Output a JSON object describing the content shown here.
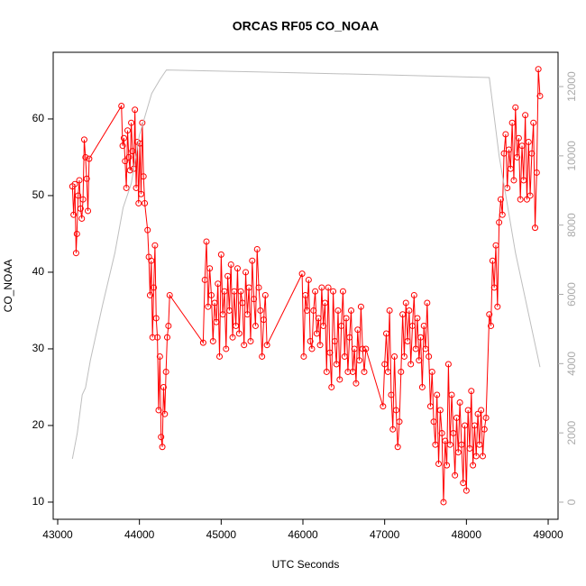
{
  "chart_data": {
    "type": "line",
    "title": "ORCAS RF05 CO_NOAA",
    "x_label": "UTC Seconds",
    "y_label": "CO_NOAA",
    "xlim": [
      42945,
      49121
    ],
    "xticks": [
      43000,
      44000,
      45000,
      46000,
      47000,
      48000,
      49000
    ],
    "ylim": [
      7.76,
      68.7
    ],
    "yticks": [
      10,
      20,
      30,
      40,
      50,
      60
    ],
    "y2lim": [
      -495,
      12990
    ],
    "y2ticks": [
      0,
      2000,
      4000,
      6000,
      8000,
      10000,
      12000
    ],
    "series": [
      {
        "color": "#ff0000",
        "marker": "circle",
        "x": [
          43180,
          43195,
          43210,
          43225,
          43235,
          43250,
          43265,
          43280,
          43295,
          43310,
          43325,
          43340,
          43355,
          43370,
          43385,
          43780,
          43795,
          43810,
          43825,
          43840,
          43855,
          43870,
          43885,
          43900,
          43915,
          43930,
          43945,
          43960,
          43975,
          43990,
          44005,
          44020,
          44035,
          44050,
          44065,
          44100,
          44115,
          44130,
          44145,
          44160,
          44175,
          44190,
          44205,
          44220,
          44235,
          44250,
          44265,
          44280,
          44295,
          44310,
          44325,
          44340,
          44355,
          44370,
          44780,
          44800,
          44820,
          44840,
          44860,
          44880,
          44900,
          44920,
          44940,
          44960,
          44980,
          45000,
          45020,
          45040,
          45060,
          45080,
          45100,
          45120,
          45140,
          45160,
          45180,
          45200,
          45220,
          45240,
          45260,
          45280,
          45300,
          45320,
          45340,
          45360,
          45380,
          45400,
          45420,
          45440,
          45460,
          45480,
          45500,
          45520,
          45540,
          45560,
          45990,
          46010,
          46030,
          46050,
          46070,
          46090,
          46110,
          46130,
          46150,
          46170,
          46190,
          46210,
          46230,
          46250,
          46270,
          46290,
          46310,
          46330,
          46350,
          46370,
          46390,
          46410,
          46430,
          46450,
          46470,
          46490,
          46510,
          46530,
          46550,
          46570,
          46590,
          46610,
          46630,
          46650,
          46670,
          46690,
          46710,
          46730,
          46750,
          46770,
          46980,
          47000,
          47020,
          47040,
          47060,
          47080,
          47100,
          47120,
          47140,
          47160,
          47180,
          47200,
          47220,
          47240,
          47260,
          47280,
          47300,
          47320,
          47340,
          47360,
          47380,
          47400,
          47420,
          47440,
          47460,
          47480,
          47500,
          47520,
          47540,
          47560,
          47580,
          47600,
          47620,
          47640,
          47660,
          47680,
          47700,
          47720,
          47740,
          47760,
          47780,
          47800,
          47820,
          47840,
          47860,
          47880,
          47900,
          47920,
          47940,
          47960,
          47980,
          48000,
          48020,
          48040,
          48060,
          48080,
          48100,
          48120,
          48140,
          48160,
          48180,
          48200,
          48220,
          48240,
          48280,
          48300,
          48320,
          48340,
          48360,
          48380,
          48400,
          48420,
          48440,
          48460,
          48480,
          48500,
          48520,
          48540,
          48560,
          48580,
          48600,
          48620,
          48640,
          48660,
          48680,
          48700,
          48720,
          48740,
          48760,
          48780,
          48800,
          48820,
          48840,
          48860,
          48880,
          48900
        ],
        "values": [
          51.2,
          47.5,
          51.5,
          42.5,
          45,
          50,
          52,
          48.3,
          47,
          49.5,
          57.3,
          55,
          52.2,
          48,
          54.8,
          61.7,
          56.5,
          57.5,
          54.5,
          51,
          58.5,
          55,
          53.3,
          59.5,
          55.8,
          53.5,
          61.2,
          51,
          57,
          49,
          56.8,
          50.2,
          59.5,
          52.5,
          49,
          45.5,
          42,
          37,
          41.5,
          31.5,
          38,
          43.5,
          34,
          31.5,
          22,
          29,
          18.5,
          17.2,
          25,
          21.5,
          27,
          31.5,
          33,
          37,
          30.8,
          39,
          44,
          35.5,
          40.5,
          37,
          31,
          36,
          33.5,
          38.5,
          29,
          42.3,
          34.5,
          37.5,
          30,
          39.5,
          35,
          41,
          31.5,
          37.5,
          33,
          40.5,
          32,
          37.5,
          36,
          30.5,
          40,
          34.5,
          38,
          31,
          41.5,
          36.5,
          33,
          43,
          38,
          35,
          29,
          33.8,
          37,
          30.5,
          39.8,
          29,
          37,
          35,
          39,
          31,
          30,
          35,
          37.5,
          32,
          34,
          30.5,
          38,
          33,
          36,
          27,
          38,
          29.5,
          25,
          37.5,
          31,
          28,
          35,
          26,
          33,
          37.5,
          29,
          34,
          27,
          31.5,
          35,
          27,
          30,
          25.5,
          32.5,
          28.5,
          35.5,
          30,
          27,
          30,
          22.5,
          28,
          32,
          27,
          35,
          24,
          19.5,
          29,
          22,
          17.2,
          20.5,
          27,
          34.5,
          29,
          36,
          31,
          35,
          28,
          33,
          37,
          30,
          34,
          28.5,
          31.5,
          25,
          33,
          30,
          36,
          29,
          22.5,
          27,
          20.5,
          17.5,
          24,
          15,
          22,
          19,
          10,
          18,
          14.8,
          28,
          17.5,
          24,
          19,
          13.5,
          21,
          16.5,
          23,
          17.5,
          12.5,
          20,
          11.5,
          22,
          17,
          24.5,
          14.8,
          20,
          16,
          21.5,
          17.5,
          22,
          16,
          19.5,
          21,
          34.5,
          33,
          41.5,
          38,
          43.5,
          35.5,
          46.5,
          49.5,
          47.5,
          55.5,
          58,
          51,
          56,
          53.5,
          59.5,
          52,
          61.5,
          55,
          57.5,
          49.5,
          56.5,
          52,
          60.5,
          49.5,
          57,
          50,
          55.5,
          59.5,
          45.8,
          53,
          66.5,
          63
        ]
      },
      {
        "color": "#bebebe",
        "axis": "y2",
        "x": [
          43180,
          43240,
          43300,
          43340,
          43400,
          43550,
          43700,
          43800,
          43900,
          44000,
          44150,
          44250,
          44330,
          45500,
          47000,
          48280,
          48400,
          48600,
          48900
        ],
        "values": [
          1250,
          2000,
          3100,
          3300,
          4100,
          5700,
          7200,
          8500,
          9200,
          10600,
          11800,
          12200,
          12480,
          12420,
          12340,
          12260,
          10000,
          7200,
          3900
        ]
      }
    ]
  }
}
